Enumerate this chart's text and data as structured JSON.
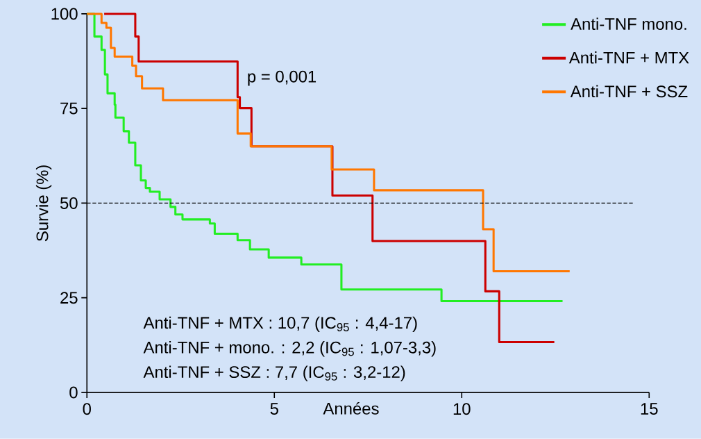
{
  "chart_data": {
    "type": "step",
    "xlabel": "Années",
    "ylabel": "Survie (%)",
    "xlim": [
      0,
      15
    ],
    "ylim": [
      0,
      100
    ],
    "xticks": [
      0,
      5,
      10,
      15
    ],
    "yticks": [
      0,
      25,
      50,
      75,
      100
    ],
    "grid": false,
    "legend": "top right",
    "marker": "none",
    "line_style": "solid",
    "series": [
      {
        "name": "Anti-TNF mono.",
        "color": "#22ee22",
        "x": [
          0,
          0.2,
          0.39,
          0.48,
          0.55,
          0.74,
          0.76,
          0.98,
          1.12,
          1.29,
          1.44,
          1.57,
          1.68,
          1.94,
          2.23,
          2.36,
          2.55,
          3.28,
          3.41,
          4.02,
          4.35,
          4.85,
          5.72,
          6.79,
          9.46,
          12.69
        ],
        "values": [
          100,
          94,
          90.5,
          84,
          79,
          76,
          72.6,
          69,
          66,
          60,
          56,
          54,
          53,
          51,
          49,
          47,
          45.7,
          44.6,
          41.9,
          40.2,
          37.8,
          35.6,
          33.8,
          27.2,
          24.1,
          24.1
        ]
      },
      {
        "name": "Anti-TNF + MTX",
        "color": "#cc0000",
        "x": [
          0.46,
          1.29,
          1.38,
          4.02,
          4.08,
          4.39,
          6.55,
          7.62,
          10.63,
          11.0,
          12.47
        ],
        "values": [
          100,
          94,
          87.4,
          78,
          75.1,
          65,
          52,
          40,
          26.7,
          13.3,
          13.3
        ]
      },
      {
        "name": "Anti-TNF + SSZ",
        "color": "#ff7700",
        "x": [
          0,
          0.39,
          0.52,
          0.64,
          0.74,
          1.21,
          1.31,
          1.47,
          2.03,
          4.02,
          4.37,
          6.53,
          7.66,
          10.57,
          10.85,
          12.88
        ],
        "values": [
          100,
          97.6,
          96.3,
          91,
          88.7,
          86.3,
          83.5,
          80.3,
          77.2,
          68.4,
          65,
          58.9,
          53.4,
          43.1,
          32,
          32
        ]
      }
    ],
    "ref_lines": [
      {
        "axis": "y",
        "value": 50,
        "color": "#000000",
        "line_style": "dashed"
      }
    ],
    "annotations": [
      "p = 0,001",
      "Anti-TNF + MTX : 10,7 (IC$_{95}$ : 4,4-17)",
      "Anti-TNF + mono. : 2,2 (IC$_{95}$ : 1,07-3,3)",
      "Anti-TNF + SSZ : 7,7 (IC$_{95}$ : 3,2-12)"
    ]
  }
}
